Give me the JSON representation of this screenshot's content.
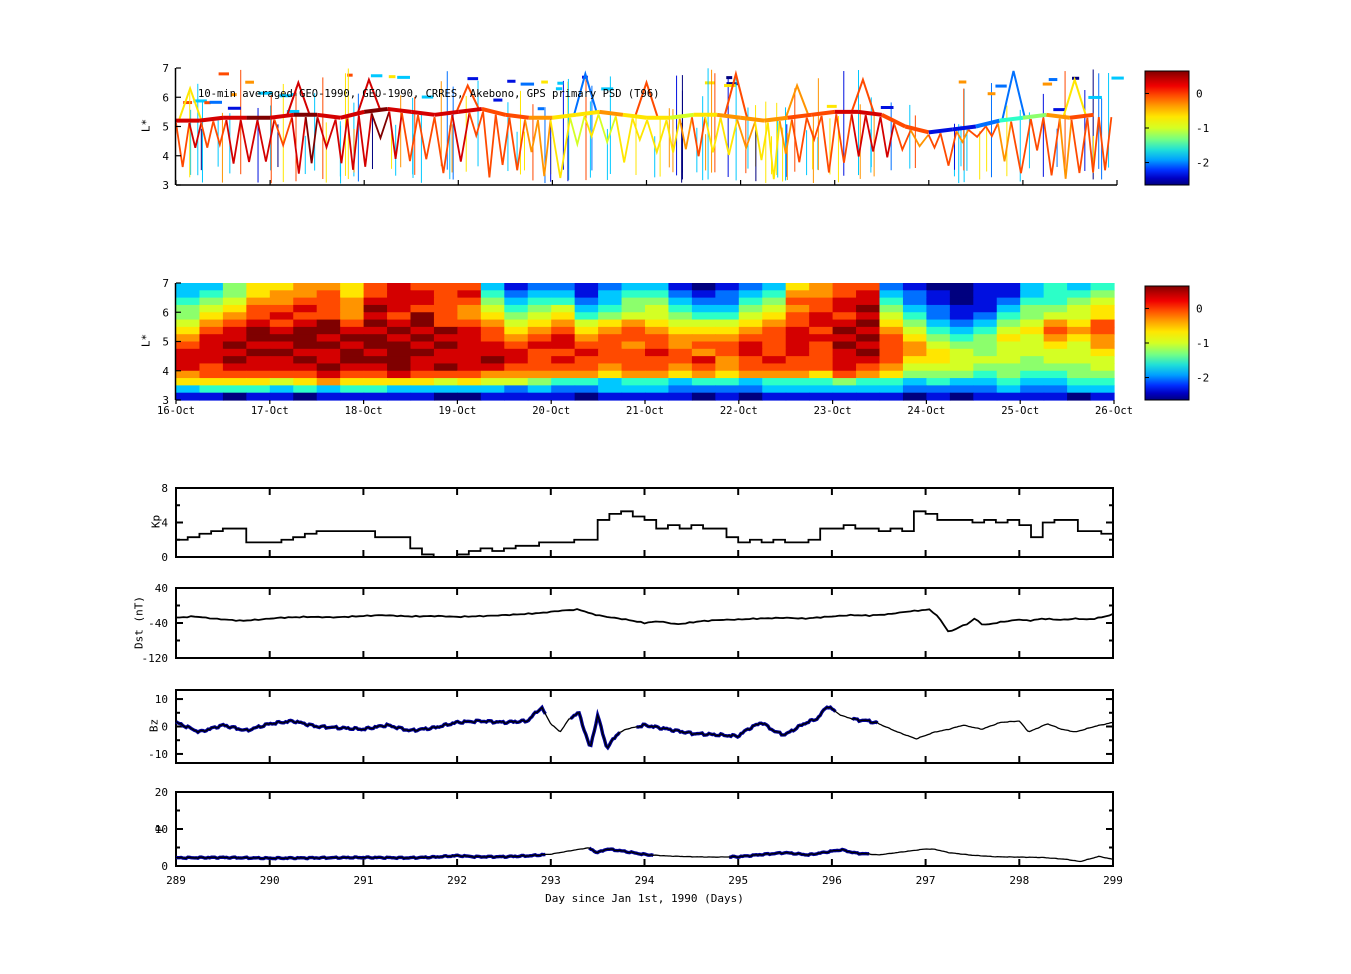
{
  "figure": {
    "background": "#ffffff",
    "text_color": "#000000",
    "data_blue": "#000099"
  },
  "palette_jet12": [
    "#00007f",
    "#0010e0",
    "#0070ff",
    "#00c8ff",
    "#2cffc8",
    "#8cff6c",
    "#d4ff24",
    "#ffe600",
    "#ff9400",
    "#ff4a00",
    "#d40000",
    "#7f0000"
  ],
  "colorbar_gradient": [
    [
      0,
      "#7f0000"
    ],
    [
      0.06,
      "#b80000"
    ],
    [
      0.13,
      "#f00000"
    ],
    [
      0.22,
      "#ff5000"
    ],
    [
      0.31,
      "#ffa000"
    ],
    [
      0.4,
      "#ffe600"
    ],
    [
      0.5,
      "#d4ff24"
    ],
    [
      0.6,
      "#74ff84"
    ],
    [
      0.69,
      "#20e0d8"
    ],
    [
      0.78,
      "#00a0ff"
    ],
    [
      0.87,
      "#0030ff"
    ],
    [
      0.94,
      "#0000c4"
    ],
    [
      1,
      "#00007f"
    ]
  ],
  "chart_data": [
    {
      "type": "line",
      "name": "psd-orbit-tracks",
      "title": "10-min averaged GEO-1990, GEO-1990, CRRES, Akebono, GPS  primary PSD (T96)",
      "ylabel": "L*",
      "ylim": [
        3,
        7
      ],
      "yticks": [
        3,
        4,
        5,
        6,
        7
      ],
      "xlim_days": [
        289,
        299
      ],
      "colorbar": {
        "ticks": [
          0,
          -1,
          -2
        ],
        "vmin": -2.65,
        "vmax": 0.65
      },
      "band": {
        "x_start_day_offset": 0,
        "x_step_days": 0.25,
        "L": [
          5.2,
          5.2,
          5.3,
          5.3,
          5.3,
          5.4,
          5.4,
          5.3,
          5.5,
          5.6,
          5.5,
          5.4,
          5.5,
          5.6,
          5.4,
          5.3,
          5.3,
          5.4,
          5.5,
          5.4,
          5.3,
          5.3,
          5.4,
          5.4,
          5.3,
          5.2,
          5.3,
          5.4,
          5.5,
          5.5,
          5.4,
          5.0,
          4.8,
          4.9,
          5.0,
          5.2,
          5.3,
          5.4,
          5.3,
          5.4
        ],
        "level": [
          10,
          10,
          10,
          11,
          10,
          11,
          10,
          10,
          11,
          10,
          10,
          10,
          10,
          9,
          9,
          8,
          7,
          7,
          8,
          7,
          7,
          6,
          7,
          8,
          8,
          8,
          9,
          9,
          10,
          10,
          9,
          9,
          1,
          1,
          2,
          4,
          5,
          8,
          9,
          10
        ]
      },
      "oscillation": {
        "period_days_min": 0.12,
        "period_days_max": 0.21,
        "trough_L_min": 3.2,
        "trough_L_max": 4.7,
        "seed": 11
      },
      "peaks": [
        [
          0.15,
          6.3,
          7
        ],
        [
          1.3,
          6.5,
          10
        ],
        [
          2.05,
          6.6,
          10
        ],
        [
          3.1,
          6.4,
          9
        ],
        [
          4.35,
          6.8,
          2
        ],
        [
          5.0,
          6.5,
          9
        ],
        [
          5.95,
          6.8,
          9
        ],
        [
          6.6,
          6.4,
          8
        ],
        [
          7.3,
          6.6,
          9
        ],
        [
          8.9,
          6.9,
          2
        ],
        [
          9.55,
          6.6,
          7
        ]
      ],
      "spikes": {
        "count": 170,
        "seed": 7,
        "levels": [
          0,
          1,
          2,
          3,
          3,
          3,
          3,
          7,
          7,
          7,
          8,
          9
        ]
      }
    },
    {
      "type": "heatmap",
      "name": "psd-lstar-spectrogram",
      "ylabel": "L*",
      "ylim": [
        3,
        7
      ],
      "yticks": [
        3,
        4,
        5,
        6,
        7
      ],
      "xticklabels": [
        "16-Oct",
        "17-Oct",
        "18-Oct",
        "19-Oct",
        "20-Oct",
        "21-Oct",
        "22-Oct",
        "23-Oct",
        "24-Oct",
        "25-Oct",
        "26-Oct"
      ],
      "colorbar": {
        "ticks": [
          0,
          -1,
          -2
        ],
        "vmin": -2.65,
        "vmax": 0.65
      },
      "grid_rows_top_to_bottom_L": [
        7.0,
        3.0
      ],
      "grid_cols_days": [
        "16-Oct",
        "26-Oct"
      ],
      "grid_levels": [
        "33577887 9a99 9312 2123 3101 2378 9921 0011 3434",
        "34578897 9aa9 a423 3134 4212 3488 9a32 1011 3445",
        "45688998 aaa9 9534 4235 5322 4599 aa42 1012 4456",
        "56799a98 ba99 8645 6345 6433 5689 ab53 2113 5567",
        "5789a998 a9b9 8756 7456 6544 679a 9a64 2124 5667",
        "689a9ab9 bab9 9867 8678 7666 789a ab75 3235 6879",
        "79ababba abab a978 9789 8777 89a9 ba86 4346 7989",
        "8aabbbab baba a989 a899 9888 99aa ab97 5457 6878",
        "9abaabba bbab aa9a a998 9899 a9a9 ba98 6556 6768",
        "aaabbaab abba aaa9 9a99 a989 a9a9 ab98 7656 6667",
        "aabaabab bbaa aba9 a999 99a8 9a99 aa97 7666 5666",
        "a9aaaaba abab aa99 9989 9898 9999 a986 6655 5556",
        "899999a9 9a99 9888 8878 8787 8887 9875 5545 4455",
        "77776787 7776 7665 4434 4344 3444 5443 4334 3344",
        "34443434 4333 3323 2233 3222 2333 3332 2223 2233",
        "11011011 1110 0111 1011 1101 0111 1110 1011 1101"
      ]
    },
    {
      "type": "line",
      "name": "kp-index",
      "ylabel": "Kp",
      "ylim": [
        0,
        8
      ],
      "yticks": [
        0,
        4,
        8
      ],
      "minor_yticks": [
        2,
        6
      ],
      "x_start_day": 289,
      "x_step_days": 0.125,
      "style": "steps",
      "values": [
        2.0,
        2.3,
        2.7,
        3.0,
        3.3,
        3.3,
        1.7,
        1.7,
        1.7,
        2.0,
        2.3,
        2.7,
        3.0,
        3.0,
        3.0,
        3.0,
        3.0,
        2.3,
        2.3,
        2.3,
        1.0,
        0.3,
        0.0,
        0.0,
        0.3,
        0.7,
        1.0,
        0.7,
        1.0,
        1.3,
        1.3,
        1.7,
        1.7,
        1.7,
        2.0,
        2.0,
        4.3,
        5.0,
        5.3,
        4.7,
        4.3,
        3.3,
        3.7,
        3.3,
        3.7,
        3.3,
        3.3,
        2.3,
        1.7,
        2.0,
        1.7,
        2.0,
        1.7,
        1.7,
        2.0,
        3.3,
        3.3,
        3.7,
        3.3,
        3.3,
        3.0,
        3.3,
        3.0,
        5.3,
        5.0,
        4.3,
        4.3,
        4.3,
        4.0,
        4.3,
        4.0,
        4.3,
        3.7,
        2.3,
        4.0,
        4.3,
        4.3,
        3.0,
        3.0,
        2.7
      ]
    },
    {
      "type": "line",
      "name": "dst-index",
      "ylabel": "Dst (nT)",
      "ylim": [
        -120,
        40
      ],
      "yticks": [
        40,
        -40,
        -120
      ],
      "minor_yticks": [
        0,
        -80
      ],
      "points_day_offset_value": [
        [
          0,
          -28
        ],
        [
          0.2,
          -25
        ],
        [
          0.4,
          -30
        ],
        [
          0.7,
          -35
        ],
        [
          0.9,
          -32
        ],
        [
          1.1,
          -28
        ],
        [
          1.4,
          -26
        ],
        [
          1.7,
          -27
        ],
        [
          2.0,
          -24
        ],
        [
          2.2,
          -22
        ],
        [
          2.5,
          -25
        ],
        [
          2.8,
          -24
        ],
        [
          3.0,
          -26
        ],
        [
          3.3,
          -24
        ],
        [
          3.6,
          -21
        ],
        [
          3.9,
          -17
        ],
        [
          4.1,
          -12
        ],
        [
          4.3,
          -9
        ],
        [
          4.45,
          -20
        ],
        [
          4.6,
          -26
        ],
        [
          4.8,
          -32
        ],
        [
          5.0,
          -40
        ],
        [
          5.15,
          -36
        ],
        [
          5.35,
          -43
        ],
        [
          5.6,
          -36
        ],
        [
          5.8,
          -33
        ],
        [
          6.0,
          -32
        ],
        [
          6.2,
          -30
        ],
        [
          6.5,
          -28
        ],
        [
          6.7,
          -30
        ],
        [
          7.0,
          -25
        ],
        [
          7.2,
          -22
        ],
        [
          7.4,
          -23
        ],
        [
          7.6,
          -20
        ],
        [
          7.8,
          -14
        ],
        [
          7.95,
          -11
        ],
        [
          8.05,
          -9
        ],
        [
          8.15,
          -30
        ],
        [
          8.25,
          -62
        ],
        [
          8.35,
          -50
        ],
        [
          8.45,
          -42
        ],
        [
          8.52,
          -30
        ],
        [
          8.62,
          -45
        ],
        [
          8.8,
          -38
        ],
        [
          9.0,
          -32
        ],
        [
          9.1,
          -35
        ],
        [
          9.25,
          -30
        ],
        [
          9.45,
          -33
        ],
        [
          9.6,
          -30
        ],
        [
          9.75,
          -32
        ],
        [
          9.9,
          -26
        ],
        [
          10,
          -20
        ]
      ]
    },
    {
      "type": "line",
      "name": "imf-bz",
      "ylabel": "Bz",
      "ylim": [
        -13.3,
        13.3
      ],
      "yticks": [
        10,
        0,
        -10
      ],
      "minor_yticks": [
        5,
        -5
      ],
      "points_day_offset_value": [
        [
          0,
          1.5
        ],
        [
          0.25,
          -2
        ],
        [
          0.5,
          0.5
        ],
        [
          0.75,
          -1.5
        ],
        [
          1,
          1
        ],
        [
          1.25,
          2
        ],
        [
          1.5,
          0
        ],
        [
          1.75,
          -0.5
        ],
        [
          2,
          -1
        ],
        [
          2.25,
          0.5
        ],
        [
          2.5,
          -1.5
        ],
        [
          2.75,
          -0.5
        ],
        [
          3,
          1.5
        ],
        [
          3.25,
          2
        ],
        [
          3.5,
          1.5
        ],
        [
          3.75,
          2
        ],
        [
          3.9,
          7
        ],
        [
          4,
          1
        ],
        [
          4.1,
          -2
        ],
        [
          4.2,
          3
        ],
        [
          4.3,
          5
        ],
        [
          4.42,
          -8
        ],
        [
          4.5,
          4
        ],
        [
          4.6,
          -8
        ],
        [
          4.7,
          -3
        ],
        [
          4.8,
          -1
        ],
        [
          5,
          0.5
        ],
        [
          5.25,
          -1
        ],
        [
          5.5,
          -2.5
        ],
        [
          5.75,
          -3
        ],
        [
          6,
          -3.5
        ],
        [
          6.1,
          -1
        ],
        [
          6.25,
          1.5
        ],
        [
          6.4,
          -2
        ],
        [
          6.5,
          -3
        ],
        [
          6.7,
          1
        ],
        [
          6.85,
          3
        ],
        [
          6.95,
          7.5
        ],
        [
          7.1,
          4
        ],
        [
          7.25,
          2.5
        ],
        [
          7.4,
          2
        ],
        [
          7.5,
          1
        ],
        [
          7.7,
          -2
        ],
        [
          7.9,
          -4.5
        ],
        [
          8.1,
          -2
        ],
        [
          8.25,
          -1
        ],
        [
          8.4,
          0.5
        ],
        [
          8.6,
          -1
        ],
        [
          8.8,
          1.5
        ],
        [
          9,
          2
        ],
        [
          9.1,
          -2
        ],
        [
          9.3,
          1
        ],
        [
          9.45,
          -1
        ],
        [
          9.6,
          -2
        ],
        [
          9.8,
          0
        ],
        [
          10,
          1.5
        ]
      ],
      "highlight_segments_day_offset": [
        [
          0,
          3.95
        ],
        [
          4.2,
          4.75
        ],
        [
          4.9,
          7.05
        ],
        [
          7.2,
          7.5
        ]
      ]
    },
    {
      "type": "line",
      "name": "solar-wind-pressure",
      "ylabel": "P",
      "ylim": [
        0,
        20
      ],
      "yticks": [
        0,
        10,
        20
      ],
      "minor_yticks": [
        5,
        15
      ],
      "xticks": [
        289,
        290,
        291,
        292,
        293,
        294,
        295,
        296,
        297,
        298,
        299
      ],
      "xlabel": "Day since Jan 1st, 1990 (Days)",
      "points_day_offset_value": [
        [
          0,
          2.2
        ],
        [
          0.5,
          2.3
        ],
        [
          1,
          2.1
        ],
        [
          1.5,
          2.2
        ],
        [
          2,
          2.3
        ],
        [
          2.5,
          2.2
        ],
        [
          2.75,
          2.4
        ],
        [
          3,
          2.8
        ],
        [
          3.2,
          2.5
        ],
        [
          3.5,
          2.5
        ],
        [
          3.8,
          2.8
        ],
        [
          4,
          3.2
        ],
        [
          4.25,
          4.3
        ],
        [
          4.4,
          4.9
        ],
        [
          4.5,
          3.6
        ],
        [
          4.6,
          4.6
        ],
        [
          4.75,
          4.1
        ],
        [
          5,
          3.1
        ],
        [
          5.25,
          2.7
        ],
        [
          5.5,
          2.5
        ],
        [
          5.75,
          2.4
        ],
        [
          6,
          2.5
        ],
        [
          6.25,
          3.1
        ],
        [
          6.5,
          3.6
        ],
        [
          6.75,
          3.0
        ],
        [
          7,
          4.0
        ],
        [
          7.1,
          4.4
        ],
        [
          7.25,
          3.5
        ],
        [
          7.5,
          3.0
        ],
        [
          7.75,
          3.8
        ],
        [
          8,
          4.6
        ],
        [
          8.1,
          4.5
        ],
        [
          8.25,
          3.6
        ],
        [
          8.5,
          2.9
        ],
        [
          8.75,
          2.5
        ],
        [
          9,
          2.4
        ],
        [
          9.25,
          2.3
        ],
        [
          9.5,
          1.8
        ],
        [
          9.65,
          1.2
        ],
        [
          9.85,
          2.6
        ],
        [
          10,
          1.8
        ]
      ],
      "highlight_segments_day_offset": [
        [
          0,
          3.95
        ],
        [
          4.4,
          5.1
        ],
        [
          5.9,
          7.4
        ]
      ]
    }
  ]
}
